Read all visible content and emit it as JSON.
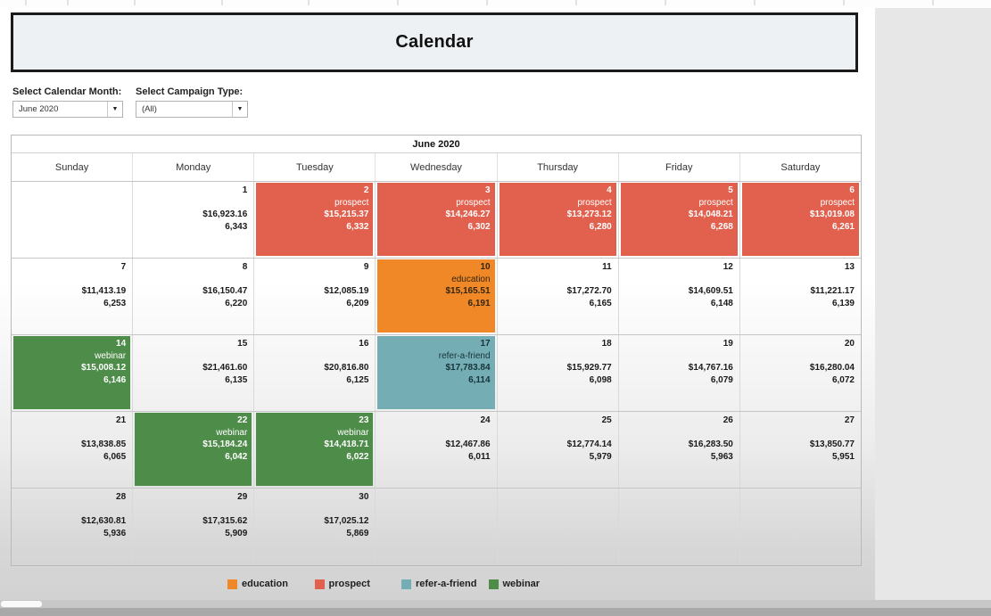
{
  "title": "Calendar",
  "filters": [
    {
      "label": "Select Calendar Month:",
      "value": "June 2020"
    },
    {
      "label": "Select Campaign Type:",
      "value": "(All)"
    }
  ],
  "calendar": {
    "month_header": "June 2020",
    "weekdays": [
      "Sunday",
      "Monday",
      "Tuesday",
      "Wednesday",
      "Thursday",
      "Friday",
      "Saturday"
    ],
    "weeks": [
      [
        {},
        {
          "day": "1",
          "campaign": "",
          "amount": "$16,923.16",
          "count": "6,343",
          "type": "none"
        },
        {
          "day": "2",
          "campaign": "prospect",
          "amount": "$15,215.37",
          "count": "6,332",
          "type": "prospect"
        },
        {
          "day": "3",
          "campaign": "prospect",
          "amount": "$14,246.27",
          "count": "6,302",
          "type": "prospect"
        },
        {
          "day": "4",
          "campaign": "prospect",
          "amount": "$13,273.12",
          "count": "6,280",
          "type": "prospect"
        },
        {
          "day": "5",
          "campaign": "prospect",
          "amount": "$14,048.21",
          "count": "6,268",
          "type": "prospect"
        },
        {
          "day": "6",
          "campaign": "prospect",
          "amount": "$13,019.08",
          "count": "6,261",
          "type": "prospect"
        }
      ],
      [
        {
          "day": "7",
          "campaign": "",
          "amount": "$11,413.19",
          "count": "6,253",
          "type": "none"
        },
        {
          "day": "8",
          "campaign": "",
          "amount": "$16,150.47",
          "count": "6,220",
          "type": "none"
        },
        {
          "day": "9",
          "campaign": "",
          "amount": "$12,085.19",
          "count": "6,209",
          "type": "none"
        },
        {
          "day": "10",
          "campaign": "education",
          "amount": "$15,165.51",
          "count": "6,191",
          "type": "education"
        },
        {
          "day": "11",
          "campaign": "",
          "amount": "$17,272.70",
          "count": "6,165",
          "type": "none"
        },
        {
          "day": "12",
          "campaign": "",
          "amount": "$14,609.51",
          "count": "6,148",
          "type": "none"
        },
        {
          "day": "13",
          "campaign": "",
          "amount": "$11,221.17",
          "count": "6,139",
          "type": "none"
        }
      ],
      [
        {
          "day": "14",
          "campaign": "webinar",
          "amount": "$15,008.12",
          "count": "6,146",
          "type": "webinar"
        },
        {
          "day": "15",
          "campaign": "",
          "amount": "$21,461.60",
          "count": "6,135",
          "type": "none"
        },
        {
          "day": "16",
          "campaign": "",
          "amount": "$20,816.80",
          "count": "6,125",
          "type": "none"
        },
        {
          "day": "17",
          "campaign": "refer-a-friend",
          "amount": "$17,783.84",
          "count": "6,114",
          "type": "refer-a-friend"
        },
        {
          "day": "18",
          "campaign": "",
          "amount": "$15,929.77",
          "count": "6,098",
          "type": "none"
        },
        {
          "day": "19",
          "campaign": "",
          "amount": "$14,767.16",
          "count": "6,079",
          "type": "none"
        },
        {
          "day": "20",
          "campaign": "",
          "amount": "$16,280.04",
          "count": "6,072",
          "type": "none"
        }
      ],
      [
        {
          "day": "21",
          "campaign": "",
          "amount": "$13,838.85",
          "count": "6,065",
          "type": "none"
        },
        {
          "day": "22",
          "campaign": "webinar",
          "amount": "$15,184.24",
          "count": "6,042",
          "type": "webinar"
        },
        {
          "day": "23",
          "campaign": "webinar",
          "amount": "$14,418.71",
          "count": "6,022",
          "type": "webinar"
        },
        {
          "day": "24",
          "campaign": "",
          "amount": "$12,467.86",
          "count": "6,011",
          "type": "none"
        },
        {
          "day": "25",
          "campaign": "",
          "amount": "$12,774.14",
          "count": "5,979",
          "type": "none"
        },
        {
          "day": "26",
          "campaign": "",
          "amount": "$16,283.50",
          "count": "5,963",
          "type": "none"
        },
        {
          "day": "27",
          "campaign": "",
          "amount": "$13,850.77",
          "count": "5,951",
          "type": "none"
        }
      ],
      [
        {
          "day": "28",
          "campaign": "",
          "amount": "$12,630.81",
          "count": "5,936",
          "type": "none"
        },
        {
          "day": "29",
          "campaign": "",
          "amount": "$17,315.62",
          "count": "5,909",
          "type": "none"
        },
        {
          "day": "30",
          "campaign": "",
          "amount": "$17,025.12",
          "count": "5,869",
          "type": "none"
        },
        {},
        {},
        {},
        {}
      ]
    ]
  },
  "campaign_styles": {
    "education": {
      "fill": "#f08827",
      "text": "#33250d"
    },
    "prospect": {
      "fill": "#e2604e",
      "text": "#ffffff"
    },
    "refer-a-friend": {
      "fill": "#74aeb4",
      "text": "#17333a"
    },
    "webinar": {
      "fill": "#4e8c4a",
      "text": "#ffffff"
    }
  },
  "legend": [
    {
      "label": "education",
      "color": "#f08827"
    },
    {
      "label": "prospect",
      "color": "#e2604e"
    },
    {
      "label": "refer-a-friend",
      "color": "#74aeb4"
    },
    {
      "label": "webinar",
      "color": "#4e8c4a"
    }
  ]
}
